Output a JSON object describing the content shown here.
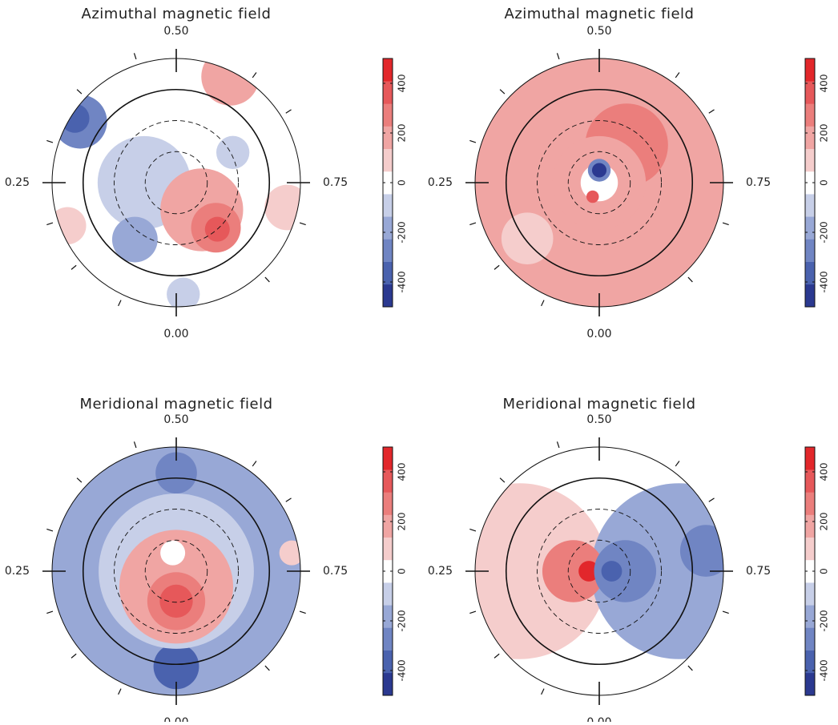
{
  "chart_data": [
    {
      "type": "polar-map",
      "title": "Azimuthal magnetic field",
      "phase_ticks": [
        {
          "value": 0.0,
          "label": "0.00"
        },
        {
          "value": 0.25,
          "label": "0.25"
        },
        {
          "value": 0.5,
          "label": "0.50"
        },
        {
          "value": 0.75,
          "label": "0.75"
        }
      ],
      "obs_phases": [
        0.07,
        0.14,
        0.2,
        0.3,
        0.37,
        0.45,
        0.6,
        0.66,
        0.8,
        0.88
      ],
      "rlim": [
        0,
        120
      ],
      "rticks": [
        30,
        60,
        90
      ],
      "rgrid_styles": [
        "dashed",
        "dashed",
        "solid"
      ],
      "clim": [
        -500,
        500
      ],
      "cticks": [
        -400,
        -200,
        0,
        200,
        400
      ],
      "colors": [
        "#2b3990",
        "#4a62ae",
        "#7085c3",
        "#98a8d6",
        "#c7cfe8",
        "#ffffff",
        "#f5cdcc",
        "#f0a5a3",
        "#eb7e7c",
        "#e6585a",
        "#e2272b"
      ],
      "field": [
        {
          "phase": 0.25,
          "colat": 31,
          "size": 45,
          "value": -120
        },
        {
          "phase": 0.1,
          "colat": 68,
          "size": 22,
          "value": -200
        },
        {
          "phase": 0.34,
          "colat": 110,
          "size": 26,
          "value": -250
        },
        {
          "phase": 0.34,
          "colat": 116,
          "size": 14,
          "value": -380
        },
        {
          "phase": 0.575,
          "colat": 115,
          "size": 28,
          "value": 150
        },
        {
          "phase": 0.19,
          "colat": 113,
          "size": 18,
          "value": 120
        },
        {
          "phase": 0.785,
          "colat": 110,
          "size": 22,
          "value": 100
        },
        {
          "phase": 0.672,
          "colat": 62,
          "size": 16,
          "value": -130
        },
        {
          "phase": 0.99,
          "colat": 108,
          "size": 16,
          "value": -120
        },
        {
          "phase": 0.88,
          "colat": 36,
          "size": 40,
          "value": 180
        },
        {
          "phase": 0.885,
          "colat": 58,
          "size": 24,
          "value": 280
        },
        {
          "phase": 0.885,
          "colat": 60,
          "size": 12,
          "value": 360
        }
      ]
    },
    {
      "type": "polar-map",
      "title": "Azimuthal magnetic field",
      "phase_ticks": [
        {
          "value": 0.0,
          "label": "0.00"
        },
        {
          "value": 0.25,
          "label": "0.25"
        },
        {
          "value": 0.5,
          "label": "0.50"
        },
        {
          "value": 0.75,
          "label": "0.75"
        }
      ],
      "obs_phases": [
        0.07,
        0.14,
        0.2,
        0.3,
        0.37,
        0.45,
        0.6,
        0.66,
        0.8,
        0.88
      ],
      "rlim": [
        0,
        120
      ],
      "rticks": [
        30,
        60,
        90
      ],
      "rgrid_styles": [
        "dashed",
        "dashed",
        "solid"
      ],
      "clim": [
        -500,
        500
      ],
      "cticks": [
        -400,
        -200,
        0,
        200,
        400
      ],
      "colors": [
        "#2b3990",
        "#4a62ae",
        "#7085c3",
        "#98a8d6",
        "#c7cfe8",
        "#ffffff",
        "#f5cdcc",
        "#f0a5a3",
        "#eb7e7c",
        "#e6585a",
        "#e2272b"
      ],
      "field": [
        {
          "phase": 0.0,
          "colat": 0,
          "size": 125,
          "value": 150
        },
        {
          "phase": 0.145,
          "colat": 88,
          "size": 25,
          "value": 60
        },
        {
          "phase": 0.6,
          "colat": 45,
          "size": 40,
          "value": 250
        },
        {
          "phase": 0.0,
          "colat": 0,
          "size": 45,
          "value": 220
        },
        {
          "phase": 0.0,
          "colat": 0,
          "size": 18,
          "value": 0
        },
        {
          "phase": 0.5,
          "colat": 12,
          "size": 11,
          "value": -300
        },
        {
          "phase": 0.5,
          "colat": 12,
          "size": 7,
          "value": -420
        },
        {
          "phase": 0.07,
          "colat": 15,
          "size": 6,
          "value": 350
        }
      ]
    },
    {
      "type": "polar-map",
      "title": "Meridional magnetic field",
      "phase_ticks": [
        {
          "value": 0.0,
          "label": "0.00"
        },
        {
          "value": 0.25,
          "label": "0.25"
        },
        {
          "value": 0.5,
          "label": "0.50"
        },
        {
          "value": 0.75,
          "label": "0.75"
        }
      ],
      "obs_phases": [
        0.07,
        0.14,
        0.2,
        0.3,
        0.37,
        0.45,
        0.6,
        0.66,
        0.8,
        0.88
      ],
      "rlim": [
        0,
        120
      ],
      "rticks": [
        30,
        60,
        90
      ],
      "rgrid_styles": [
        "dashed",
        "dashed",
        "solid"
      ],
      "clim": [
        -500,
        500
      ],
      "cticks": [
        -400,
        -200,
        0,
        200,
        400
      ],
      "colors": [
        "#2b3990",
        "#4a62ae",
        "#7085c3",
        "#98a8d6",
        "#c7cfe8",
        "#ffffff",
        "#f5cdcc",
        "#f0a5a3",
        "#eb7e7c",
        "#e6585a",
        "#e2272b"
      ],
      "field": [
        {
          "phase": 0.0,
          "colat": 0,
          "size": 125,
          "value": -180
        },
        {
          "phase": 0.5,
          "colat": 95,
          "size": 20,
          "value": -300
        },
        {
          "phase": 0.0,
          "colat": 92,
          "size": 22,
          "value": -320
        },
        {
          "phase": 0.725,
          "colat": 113,
          "size": 12,
          "value": 100
        },
        {
          "phase": 0.0,
          "colat": 0,
          "size": 75,
          "value": -60
        },
        {
          "phase": 0.0,
          "colat": 15,
          "size": 55,
          "value": 150
        },
        {
          "phase": 0.0,
          "colat": 29,
          "size": 28,
          "value": 250
        },
        {
          "phase": 0.0,
          "colat": 29,
          "size": 16,
          "value": 380
        },
        {
          "phase": 0.47,
          "colat": 18,
          "size": 12,
          "value": 0
        }
      ]
    },
    {
      "type": "polar-map",
      "title": "Meridional magnetic field",
      "phase_ticks": [
        {
          "value": 0.0,
          "label": "0.00"
        },
        {
          "value": 0.25,
          "label": "0.25"
        },
        {
          "value": 0.5,
          "label": "0.50"
        },
        {
          "value": 0.75,
          "label": "0.75"
        }
      ],
      "obs_phases": [
        0.07,
        0.14,
        0.2,
        0.3,
        0.37,
        0.45,
        0.6,
        0.66,
        0.8,
        0.88
      ],
      "rlim": [
        0,
        120
      ],
      "rticks": [
        30,
        60,
        90
      ],
      "rgrid_styles": [
        "dashed",
        "dashed",
        "solid"
      ],
      "clim": [
        -500,
        500
      ],
      "cticks": [
        -400,
        -200,
        0,
        200,
        400
      ],
      "colors": [
        "#2b3990",
        "#4a62ae",
        "#7085c3",
        "#98a8d6",
        "#c7cfe8",
        "#ffffff",
        "#f5cdcc",
        "#f0a5a3",
        "#eb7e7c",
        "#e6585a",
        "#e2272b"
      ],
      "field": [
        {
          "phase": 0.25,
          "colat": 77,
          "size": 85,
          "value": 120
        },
        {
          "phase": 0.75,
          "colat": 77,
          "size": 85,
          "value": -150
        },
        {
          "phase": 0.72,
          "colat": 105,
          "size": 25,
          "value": -250
        },
        {
          "phase": 0.5,
          "colat": 95,
          "size": 25,
          "value": 0
        },
        {
          "phase": 0.0,
          "colat": 98,
          "size": 25,
          "value": 0
        },
        {
          "phase": 0.25,
          "colat": 25,
          "size": 30,
          "value": 250
        },
        {
          "phase": 0.25,
          "colat": 10,
          "size": 10,
          "value": 420
        },
        {
          "phase": 0.75,
          "colat": 25,
          "size": 30,
          "value": -250
        },
        {
          "phase": 0.75,
          "colat": 12,
          "size": 10,
          "value": -400
        }
      ]
    }
  ]
}
